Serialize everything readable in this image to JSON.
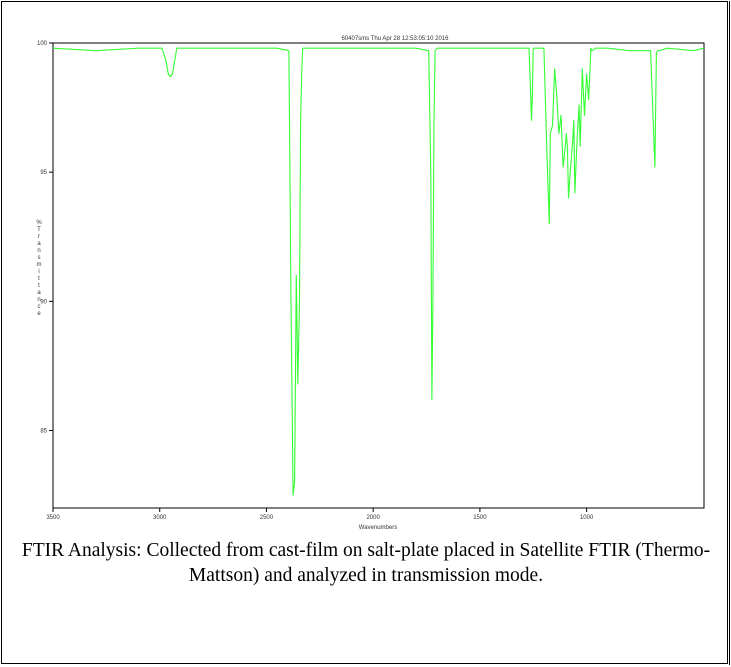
{
  "chart_data": {
    "type": "line",
    "title": "60407sms   Thu Apr 28 12:53:05:10 2016",
    "xlabel": "Wavenumbers",
    "ylabel": "% Transmittance",
    "xlim": [
      3500,
      450
    ],
    "ylim": [
      82,
      100
    ],
    "x_ticks": [
      3500,
      3000,
      2500,
      2000,
      1500,
      1000
    ],
    "y_ticks": [
      85,
      90,
      95,
      100
    ],
    "grid": false,
    "line_color": "#33ff33",
    "series": [
      {
        "x": [
          3500,
          3300,
          3100,
          2990,
          2970,
          2960,
          2950,
          2940,
          2920,
          2800,
          2600,
          2450,
          2395,
          2385,
          2375,
          2368,
          2360,
          2353,
          2345,
          2340,
          2335,
          2330,
          2318,
          2300,
          2200,
          2000,
          1800,
          1740,
          1730,
          1725,
          1720,
          1715,
          1710,
          1700,
          1600,
          1400,
          1270,
          1262,
          1258,
          1254,
          1250,
          1245,
          1240,
          1200,
          1185,
          1175,
          1170,
          1160,
          1150,
          1140,
          1130,
          1120,
          1110,
          1100,
          1095,
          1090,
          1085,
          1075,
          1065,
          1060,
          1055,
          1045,
          1035,
          1030,
          1020,
          1010,
          1000,
          990,
          980,
          975,
          960,
          900,
          800,
          700,
          680,
          673,
          668,
          660,
          620,
          500,
          450
        ],
        "y": [
          99.8,
          99.7,
          99.8,
          99.8,
          99.3,
          98.8,
          98.7,
          98.8,
          99.8,
          99.8,
          99.8,
          99.8,
          99.7,
          90,
          82.5,
          83,
          91,
          86.8,
          90,
          97,
          98.8,
          99.8,
          99.8,
          99.8,
          99.8,
          99.8,
          99.8,
          99.7,
          95,
          86.2,
          90,
          97,
          99.7,
          99.8,
          99.8,
          99.8,
          99.8,
          98,
          97,
          98,
          99.8,
          99.8,
          99.8,
          99.8,
          95.5,
          93,
          96.5,
          96.8,
          99,
          98,
          96.5,
          97.2,
          95.2,
          96,
          96.5,
          96,
          94,
          95.2,
          96.2,
          97,
          94.2,
          96.2,
          97.6,
          96,
          99,
          97.2,
          98.8,
          97.8,
          99.8,
          99.7,
          99.8,
          99.8,
          99.7,
          99.7,
          95.2,
          99.6,
          99.7,
          99.7,
          99.8,
          99.7,
          99.8
        ]
      }
    ]
  },
  "caption": {
    "text": "FTIR Analysis: Collected from cast-film on salt-plate placed in Satellite FTIR (Thermo-Mattson) and analyzed in transmission mode."
  }
}
